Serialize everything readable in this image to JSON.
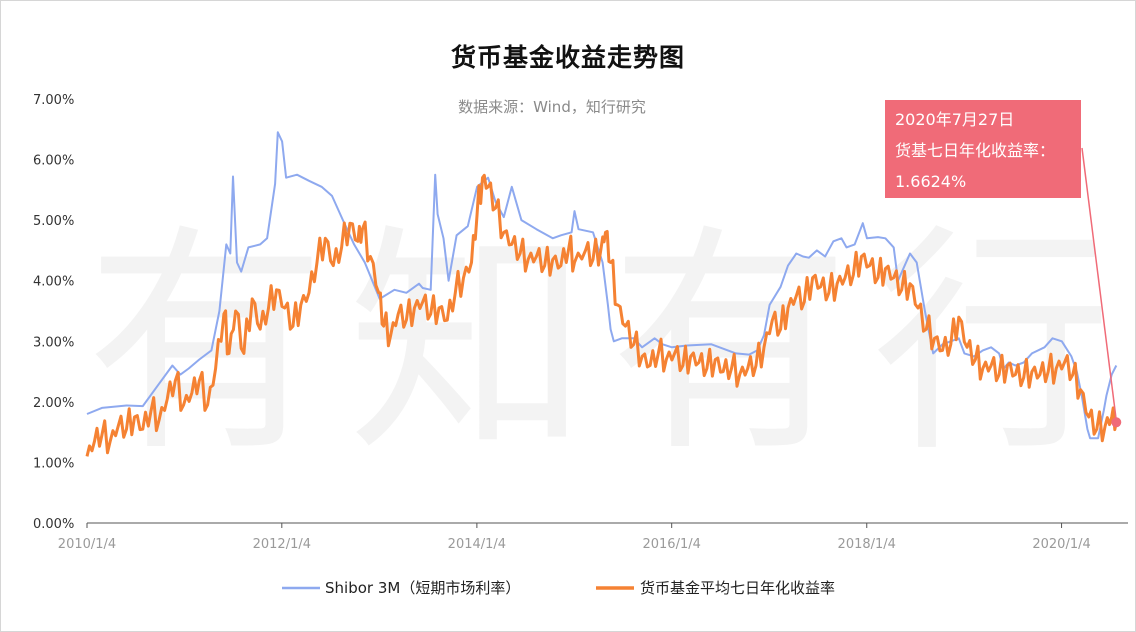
{
  "chart_data": {
    "type": "line",
    "title": "货币基金收益走势图",
    "subtitle": "数据来源：Wind，知行研究",
    "watermark": "有知有行",
    "xlabel": "",
    "ylabel": "",
    "ylim": [
      0,
      0.07
    ],
    "y_ticks": [
      "0.00%",
      "1.00%",
      "2.00%",
      "3.00%",
      "4.00%",
      "5.00%",
      "6.00%",
      "7.00%"
    ],
    "x_ticks": [
      "2010/1/4",
      "2012/1/4",
      "2014/1/4",
      "2016/1/4",
      "2018/1/4",
      "2020/1/4"
    ],
    "grid": false,
    "legend_position": "bottom",
    "series": [
      {
        "name": "Shibor 3M（短期市场利率）",
        "color": "#8ea9ef",
        "points": [
          [
            "2010-01-04",
            1.8
          ],
          [
            "2010-03-01",
            1.9
          ],
          [
            "2010-06-01",
            1.94
          ],
          [
            "2010-08-01",
            1.93
          ],
          [
            "2010-10-01",
            2.3
          ],
          [
            "2010-11-20",
            2.6
          ],
          [
            "2010-12-20",
            2.45
          ],
          [
            "2011-01-20",
            2.55
          ],
          [
            "2011-03-01",
            2.7
          ],
          [
            "2011-04-15",
            2.85
          ],
          [
            "2011-05-15",
            3.5
          ],
          [
            "2011-06-10",
            4.6
          ],
          [
            "2011-06-25",
            4.45
          ],
          [
            "2011-07-05",
            5.72
          ],
          [
            "2011-07-20",
            4.3
          ],
          [
            "2011-08-05",
            4.15
          ],
          [
            "2011-09-01",
            4.55
          ],
          [
            "2011-10-15",
            4.6
          ],
          [
            "2011-11-10",
            4.7
          ],
          [
            "2011-12-10",
            5.6
          ],
          [
            "2011-12-20",
            6.45
          ],
          [
            "2012-01-05",
            6.3
          ],
          [
            "2012-01-20",
            5.7
          ],
          [
            "2012-03-01",
            5.75
          ],
          [
            "2012-04-15",
            5.65
          ],
          [
            "2012-06-01",
            5.55
          ],
          [
            "2012-07-10",
            5.4
          ],
          [
            "2012-08-20",
            5.0
          ],
          [
            "2012-10-01",
            4.6
          ],
          [
            "2012-11-10",
            4.3
          ],
          [
            "2013-01-05",
            3.7
          ],
          [
            "2013-03-01",
            3.85
          ],
          [
            "2013-04-15",
            3.8
          ],
          [
            "2013-06-01",
            3.95
          ],
          [
            "2013-06-15",
            3.88
          ],
          [
            "2013-07-15",
            3.85
          ],
          [
            "2013-08-01",
            5.75
          ],
          [
            "2013-08-10",
            5.1
          ],
          [
            "2013-09-01",
            4.7
          ],
          [
            "2013-09-20",
            4.0
          ],
          [
            "2013-10-20",
            4.75
          ],
          [
            "2013-12-01",
            4.9
          ],
          [
            "2014-01-05",
            5.55
          ],
          [
            "2014-02-15",
            5.7
          ],
          [
            "2014-03-15",
            5.3
          ],
          [
            "2014-04-15",
            5.05
          ],
          [
            "2014-05-15",
            5.55
          ],
          [
            "2014-06-20",
            5.0
          ],
          [
            "2014-08-15",
            4.85
          ],
          [
            "2014-10-15",
            4.7
          ],
          [
            "2014-11-15",
            4.75
          ],
          [
            "2014-12-25",
            4.8
          ],
          [
            "2015-01-05",
            5.15
          ],
          [
            "2015-01-20",
            4.85
          ],
          [
            "2015-03-15",
            4.8
          ],
          [
            "2015-04-20",
            4.3
          ],
          [
            "2015-05-10",
            3.6
          ],
          [
            "2015-05-20",
            3.2
          ],
          [
            "2015-06-01",
            3.0
          ],
          [
            "2015-07-01",
            3.05
          ],
          [
            "2015-08-15",
            3.05
          ],
          [
            "2015-09-15",
            2.9
          ],
          [
            "2015-11-01",
            3.05
          ],
          [
            "2015-12-01",
            2.95
          ],
          [
            "2016-01-05",
            2.9
          ],
          [
            "2016-03-01",
            2.93
          ],
          [
            "2016-06-01",
            2.95
          ],
          [
            "2016-09-01",
            2.8
          ],
          [
            "2016-10-20",
            2.78
          ],
          [
            "2016-11-20",
            2.85
          ],
          [
            "2016-12-15",
            3.1
          ],
          [
            "2017-01-05",
            3.6
          ],
          [
            "2017-02-15",
            3.9
          ],
          [
            "2017-03-15",
            4.25
          ],
          [
            "2017-04-15",
            4.45
          ],
          [
            "2017-05-10",
            4.4
          ],
          [
            "2017-06-01",
            4.38
          ],
          [
            "2017-07-01",
            4.5
          ],
          [
            "2017-08-01",
            4.4
          ],
          [
            "2017-09-01",
            4.65
          ],
          [
            "2017-10-01",
            4.7
          ],
          [
            "2017-10-20",
            4.55
          ],
          [
            "2017-11-20",
            4.6
          ],
          [
            "2017-12-20",
            4.95
          ],
          [
            "2018-01-05",
            4.7
          ],
          [
            "2018-02-15",
            4.72
          ],
          [
            "2018-03-15",
            4.7
          ],
          [
            "2018-04-15",
            4.55
          ],
          [
            "2018-05-01",
            4.0
          ],
          [
            "2018-06-15",
            4.45
          ],
          [
            "2018-07-10",
            4.3
          ],
          [
            "2018-08-10",
            3.5
          ],
          [
            "2018-09-10",
            2.8
          ],
          [
            "2018-10-15",
            2.95
          ],
          [
            "2018-11-15",
            3.0
          ],
          [
            "2018-12-15",
            3.05
          ],
          [
            "2019-01-05",
            2.8
          ],
          [
            "2019-02-10",
            2.75
          ],
          [
            "2019-03-15",
            2.85
          ],
          [
            "2019-04-15",
            2.9
          ],
          [
            "2019-05-15",
            2.8
          ],
          [
            "2019-06-01",
            2.55
          ],
          [
            "2019-06-20",
            2.65
          ],
          [
            "2019-07-15",
            2.6
          ],
          [
            "2019-08-15",
            2.65
          ],
          [
            "2019-09-15",
            2.8
          ],
          [
            "2019-11-01",
            2.9
          ],
          [
            "2019-12-01",
            3.05
          ],
          [
            "2020-01-05",
            3.0
          ],
          [
            "2020-02-10",
            2.75
          ],
          [
            "2020-03-01",
            2.5
          ],
          [
            "2020-03-20",
            2.1
          ],
          [
            "2020-04-10",
            1.55
          ],
          [
            "2020-04-20",
            1.4
          ],
          [
            "2020-05-20",
            1.4
          ],
          [
            "2020-06-10",
            1.85
          ],
          [
            "2020-06-20",
            2.1
          ],
          [
            "2020-07-10",
            2.45
          ],
          [
            "2020-07-27",
            2.6
          ]
        ]
      },
      {
        "name": "货币基金平均七日年化收益率",
        "color": "#f58233",
        "points": [
          [
            "2010-01-04",
            1.1
          ],
          [
            "2010-02-01",
            1.35
          ],
          [
            "2010-03-01",
            1.45
          ],
          [
            "2010-04-01",
            1.35
          ],
          [
            "2010-05-01",
            1.6
          ],
          [
            "2010-06-01",
            1.55
          ],
          [
            "2010-07-01",
            1.75
          ],
          [
            "2010-08-01",
            1.55
          ],
          [
            "2010-09-01",
            1.85
          ],
          [
            "2010-10-01",
            1.7
          ],
          [
            "2010-11-01",
            2.05
          ],
          [
            "2010-12-01",
            2.35
          ],
          [
            "2011-01-01",
            1.95
          ],
          [
            "2011-02-01",
            2.15
          ],
          [
            "2011-03-01",
            2.35
          ],
          [
            "2011-04-01",
            1.95
          ],
          [
            "2011-05-01",
            2.55
          ],
          [
            "2011-06-01",
            3.45
          ],
          [
            "2011-06-20",
            2.8
          ],
          [
            "2011-07-15",
            3.5
          ],
          [
            "2011-08-15",
            2.8
          ],
          [
            "2011-09-15",
            3.7
          ],
          [
            "2011-10-15",
            3.2
          ],
          [
            "2011-11-15",
            3.55
          ],
          [
            "2011-12-15",
            3.85
          ],
          [
            "2012-01-15",
            3.55
          ],
          [
            "2012-02-15",
            3.25
          ],
          [
            "2012-03-15",
            3.6
          ],
          [
            "2012-04-15",
            3.8
          ],
          [
            "2012-05-15",
            4.3
          ],
          [
            "2012-06-15",
            4.7
          ],
          [
            "2012-07-15",
            4.25
          ],
          [
            "2012-08-15",
            4.55
          ],
          [
            "2012-09-15",
            4.95
          ],
          [
            "2012-10-15",
            4.65
          ],
          [
            "2012-11-01",
            4.85
          ],
          [
            "2012-12-01",
            4.4
          ],
          [
            "2013-01-01",
            3.8
          ],
          [
            "2013-01-20",
            3.25
          ],
          [
            "2013-02-15",
            3.1
          ],
          [
            "2013-03-15",
            3.45
          ],
          [
            "2013-04-15",
            3.35
          ],
          [
            "2013-05-15",
            3.55
          ],
          [
            "2013-06-15",
            3.65
          ],
          [
            "2013-07-15",
            3.45
          ],
          [
            "2013-08-15",
            3.55
          ],
          [
            "2013-09-15",
            3.35
          ],
          [
            "2013-10-15",
            3.8
          ],
          [
            "2013-11-15",
            4.05
          ],
          [
            "2013-12-15",
            4.3
          ],
          [
            "2014-01-05",
            5.1
          ],
          [
            "2014-01-25",
            5.7
          ],
          [
            "2014-02-15",
            5.55
          ],
          [
            "2014-03-15",
            5.2
          ],
          [
            "2014-04-15",
            4.8
          ],
          [
            "2014-05-15",
            4.6
          ],
          [
            "2014-06-15",
            4.45
          ],
          [
            "2014-07-15",
            4.35
          ],
          [
            "2014-08-15",
            4.4
          ],
          [
            "2014-09-15",
            4.25
          ],
          [
            "2014-10-15",
            4.35
          ],
          [
            "2014-11-15",
            4.25
          ],
          [
            "2014-12-15",
            4.55
          ],
          [
            "2015-01-05",
            4.3
          ],
          [
            "2015-02-15",
            4.5
          ],
          [
            "2015-03-15",
            4.35
          ],
          [
            "2015-04-15",
            4.55
          ],
          [
            "2015-05-01",
            4.8
          ],
          [
            "2015-05-20",
            4.3
          ],
          [
            "2015-06-15",
            3.6
          ],
          [
            "2015-07-15",
            3.25
          ],
          [
            "2015-08-15",
            2.95
          ],
          [
            "2015-09-15",
            2.75
          ],
          [
            "2015-10-15",
            2.6
          ],
          [
            "2015-11-15",
            2.8
          ],
          [
            "2015-12-15",
            2.7
          ],
          [
            "2016-01-15",
            2.8
          ],
          [
            "2016-02-15",
            2.6
          ],
          [
            "2016-03-15",
            2.75
          ],
          [
            "2016-04-15",
            2.65
          ],
          [
            "2016-05-15",
            2.55
          ],
          [
            "2016-06-15",
            2.7
          ],
          [
            "2016-07-15",
            2.5
          ],
          [
            "2016-08-15",
            2.55
          ],
          [
            "2016-09-15",
            2.45
          ],
          [
            "2016-10-15",
            2.55
          ],
          [
            "2016-11-15",
            2.6
          ],
          [
            "2016-12-15",
            2.9
          ],
          [
            "2017-01-15",
            3.35
          ],
          [
            "2017-02-15",
            3.2
          ],
          [
            "2017-03-15",
            3.55
          ],
          [
            "2017-04-15",
            3.75
          ],
          [
            "2017-05-15",
            3.65
          ],
          [
            "2017-06-15",
            4.05
          ],
          [
            "2017-07-15",
            3.9
          ],
          [
            "2017-08-15",
            3.8
          ],
          [
            "2017-09-15",
            3.95
          ],
          [
            "2017-10-15",
            4.05
          ],
          [
            "2017-11-15",
            4.1
          ],
          [
            "2017-12-15",
            4.4
          ],
          [
            "2018-01-15",
            4.25
          ],
          [
            "2018-02-15",
            4.05
          ],
          [
            "2018-03-15",
            4.2
          ],
          [
            "2018-04-15",
            4.05
          ],
          [
            "2018-05-15",
            3.85
          ],
          [
            "2018-06-15",
            3.95
          ],
          [
            "2018-07-15",
            3.55
          ],
          [
            "2018-08-15",
            3.2
          ],
          [
            "2018-09-15",
            3.05
          ],
          [
            "2018-10-15",
            2.85
          ],
          [
            "2018-11-15",
            2.95
          ],
          [
            "2018-12-15",
            3.4
          ],
          [
            "2019-01-15",
            2.9
          ],
          [
            "2019-02-15",
            2.7
          ],
          [
            "2019-03-15",
            2.55
          ],
          [
            "2019-04-15",
            2.6
          ],
          [
            "2019-05-15",
            2.45
          ],
          [
            "2019-06-15",
            2.6
          ],
          [
            "2019-07-15",
            2.45
          ],
          [
            "2019-08-15",
            2.4
          ],
          [
            "2019-09-15",
            2.5
          ],
          [
            "2019-10-15",
            2.45
          ],
          [
            "2019-11-15",
            2.5
          ],
          [
            "2019-12-15",
            2.55
          ],
          [
            "2020-01-15",
            2.65
          ],
          [
            "2020-02-15",
            2.45
          ],
          [
            "2020-03-15",
            2.2
          ],
          [
            "2020-04-15",
            1.75
          ],
          [
            "2020-05-15",
            1.55
          ],
          [
            "2020-06-15",
            1.6
          ],
          [
            "2020-07-10",
            1.75
          ],
          [
            "2020-07-27",
            1.6624
          ]
        ]
      }
    ],
    "annotation": {
      "line1": "2020年7月27日",
      "line2": "货基七日年化收益率：",
      "line3": "1.6624%",
      "color": "#f06b78"
    }
  }
}
